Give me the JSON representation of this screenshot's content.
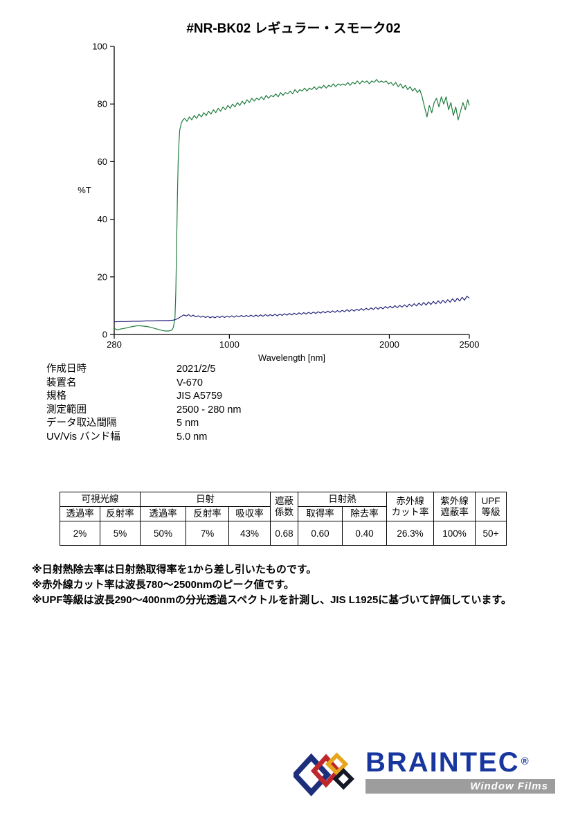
{
  "page": {
    "title": "#NR-BK02  レギュラー・スモーク02"
  },
  "chart_data": {
    "type": "line",
    "title": "",
    "xlabel": "Wavelength [nm]",
    "ylabel": "%T",
    "xlim": [
      280,
      2500
    ],
    "ylim": [
      0,
      100
    ],
    "x_ticks": [
      280,
      1000,
      2000,
      2500
    ],
    "y_ticks": [
      0,
      20,
      40,
      60,
      80,
      100
    ],
    "grid": false,
    "legend": "none",
    "series": [
      {
        "name": "transmittance-spectrum",
        "color": "#1e7d3e",
        "points": [
          [
            280,
            2.1
          ],
          [
            300,
            1.6
          ],
          [
            320,
            1.9
          ],
          [
            340,
            2.1
          ],
          [
            360,
            2.3
          ],
          [
            380,
            2.6
          ],
          [
            400,
            2.8
          ],
          [
            420,
            3.0
          ],
          [
            440,
            3.0
          ],
          [
            460,
            2.9
          ],
          [
            480,
            2.8
          ],
          [
            500,
            2.6
          ],
          [
            520,
            2.3
          ],
          [
            540,
            2.0
          ],
          [
            560,
            1.7
          ],
          [
            580,
            1.4
          ],
          [
            600,
            1.2
          ],
          [
            620,
            1.2
          ],
          [
            640,
            1.5
          ],
          [
            650,
            2.5
          ],
          [
            660,
            6
          ],
          [
            665,
            15
          ],
          [
            670,
            30
          ],
          [
            675,
            48
          ],
          [
            680,
            60
          ],
          [
            685,
            67
          ],
          [
            690,
            71
          ],
          [
            700,
            73.5
          ],
          [
            710,
            74.5
          ],
          [
            720,
            75
          ],
          [
            735,
            74
          ],
          [
            750,
            75.5
          ],
          [
            765,
            74.5
          ],
          [
            780,
            76
          ],
          [
            795,
            75
          ],
          [
            810,
            76.5
          ],
          [
            825,
            75.5
          ],
          [
            840,
            77
          ],
          [
            855,
            76
          ],
          [
            870,
            77.5
          ],
          [
            885,
            76.5
          ],
          [
            900,
            78
          ],
          [
            915,
            77
          ],
          [
            930,
            78.5
          ],
          [
            945,
            77.5
          ],
          [
            960,
            79
          ],
          [
            975,
            78
          ],
          [
            990,
            79.5
          ],
          [
            1005,
            78.5
          ],
          [
            1020,
            80
          ],
          [
            1035,
            79
          ],
          [
            1050,
            80.5
          ],
          [
            1065,
            79.5
          ],
          [
            1080,
            81
          ],
          [
            1095,
            80
          ],
          [
            1110,
            81.5
          ],
          [
            1125,
            80.5
          ],
          [
            1140,
            82
          ],
          [
            1155,
            81
          ],
          [
            1170,
            82
          ],
          [
            1185,
            81.5
          ],
          [
            1200,
            82.5
          ],
          [
            1215,
            81.5
          ],
          [
            1230,
            83
          ],
          [
            1245,
            82
          ],
          [
            1260,
            83
          ],
          [
            1275,
            82.5
          ],
          [
            1290,
            83.5
          ],
          [
            1305,
            82.5
          ],
          [
            1320,
            84
          ],
          [
            1335,
            83
          ],
          [
            1350,
            84
          ],
          [
            1365,
            83.5
          ],
          [
            1380,
            84.5
          ],
          [
            1395,
            83.5
          ],
          [
            1410,
            85
          ],
          [
            1425,
            84
          ],
          [
            1440,
            85
          ],
          [
            1455,
            84.5
          ],
          [
            1470,
            85.5
          ],
          [
            1485,
            84.5
          ],
          [
            1500,
            85.5
          ],
          [
            1515,
            85
          ],
          [
            1530,
            86
          ],
          [
            1545,
            85
          ],
          [
            1560,
            86
          ],
          [
            1575,
            85.5
          ],
          [
            1590,
            86.5
          ],
          [
            1605,
            85.5
          ],
          [
            1620,
            86.5
          ],
          [
            1635,
            86
          ],
          [
            1650,
            87
          ],
          [
            1665,
            86
          ],
          [
            1680,
            87
          ],
          [
            1695,
            86.5
          ],
          [
            1710,
            87
          ],
          [
            1725,
            86.5
          ],
          [
            1740,
            87.5
          ],
          [
            1755,
            86.5
          ],
          [
            1770,
            87.5
          ],
          [
            1785,
            87
          ],
          [
            1800,
            88
          ],
          [
            1815,
            87
          ],
          [
            1830,
            88
          ],
          [
            1845,
            87.5
          ],
          [
            1860,
            88
          ],
          [
            1875,
            87
          ],
          [
            1890,
            88
          ],
          [
            1905,
            87.5
          ],
          [
            1920,
            88.5
          ],
          [
            1935,
            87.5
          ],
          [
            1950,
            88
          ],
          [
            1965,
            87.5
          ],
          [
            1980,
            88
          ],
          [
            1995,
            87
          ],
          [
            2010,
            87.5
          ],
          [
            2025,
            86.5
          ],
          [
            2040,
            87.5
          ],
          [
            2055,
            86
          ],
          [
            2070,
            87
          ],
          [
            2085,
            85.5
          ],
          [
            2100,
            86.5
          ],
          [
            2115,
            85
          ],
          [
            2130,
            86
          ],
          [
            2145,
            84.5
          ],
          [
            2160,
            85.5
          ],
          [
            2175,
            84
          ],
          [
            2190,
            85
          ],
          [
            2205,
            82.5
          ],
          [
            2220,
            79
          ],
          [
            2235,
            75.5
          ],
          [
            2250,
            79.5
          ],
          [
            2265,
            77
          ],
          [
            2280,
            80.5
          ],
          [
            2295,
            82
          ],
          [
            2310,
            79
          ],
          [
            2325,
            82.5
          ],
          [
            2340,
            80
          ],
          [
            2355,
            82.5
          ],
          [
            2370,
            78
          ],
          [
            2385,
            80.5
          ],
          [
            2400,
            76
          ],
          [
            2415,
            79
          ],
          [
            2430,
            74.5
          ],
          [
            2445,
            77.5
          ],
          [
            2460,
            80.5
          ],
          [
            2475,
            78
          ],
          [
            2490,
            81.5
          ],
          [
            2500,
            79.5
          ]
        ]
      },
      {
        "name": "reflectance-spectrum",
        "color": "#23237a",
        "points": [
          [
            280,
            4.4
          ],
          [
            320,
            4.5
          ],
          [
            360,
            4.5
          ],
          [
            400,
            4.6
          ],
          [
            440,
            4.6
          ],
          [
            480,
            4.7
          ],
          [
            520,
            4.7
          ],
          [
            560,
            4.8
          ],
          [
            600,
            4.8
          ],
          [
            640,
            4.9
          ],
          [
            660,
            5.1
          ],
          [
            680,
            5.6
          ],
          [
            700,
            6.3
          ],
          [
            715,
            6.8
          ],
          [
            730,
            6.4
          ],
          [
            745,
            6.9
          ],
          [
            760,
            6.3
          ],
          [
            775,
            6.7
          ],
          [
            790,
            6.1
          ],
          [
            805,
            6.5
          ],
          [
            820,
            6.0
          ],
          [
            835,
            6.4
          ],
          [
            850,
            5.9
          ],
          [
            865,
            6.3
          ],
          [
            880,
            5.8
          ],
          [
            895,
            6.2
          ],
          [
            910,
            5.8
          ],
          [
            925,
            6.3
          ],
          [
            940,
            5.9
          ],
          [
            955,
            6.4
          ],
          [
            970,
            5.9
          ],
          [
            985,
            6.4
          ],
          [
            1000,
            6.0
          ],
          [
            1015,
            6.5
          ],
          [
            1030,
            6.0
          ],
          [
            1045,
            6.5
          ],
          [
            1060,
            6.1
          ],
          [
            1075,
            6.6
          ],
          [
            1090,
            6.1
          ],
          [
            1105,
            6.6
          ],
          [
            1120,
            6.2
          ],
          [
            1135,
            6.7
          ],
          [
            1150,
            6.2
          ],
          [
            1165,
            6.7
          ],
          [
            1180,
            6.3
          ],
          [
            1195,
            6.8
          ],
          [
            1210,
            6.3
          ],
          [
            1225,
            6.9
          ],
          [
            1240,
            6.4
          ],
          [
            1255,
            6.9
          ],
          [
            1270,
            6.5
          ],
          [
            1285,
            7.0
          ],
          [
            1300,
            6.5
          ],
          [
            1315,
            7.1
          ],
          [
            1330,
            6.6
          ],
          [
            1345,
            7.2
          ],
          [
            1360,
            6.7
          ],
          [
            1375,
            7.3
          ],
          [
            1390,
            6.8
          ],
          [
            1405,
            7.4
          ],
          [
            1420,
            6.9
          ],
          [
            1435,
            7.5
          ],
          [
            1450,
            7.0
          ],
          [
            1465,
            7.6
          ],
          [
            1480,
            7.1
          ],
          [
            1495,
            7.7
          ],
          [
            1510,
            7.2
          ],
          [
            1525,
            7.8
          ],
          [
            1540,
            7.3
          ],
          [
            1555,
            7.9
          ],
          [
            1570,
            7.4
          ],
          [
            1585,
            8.0
          ],
          [
            1600,
            7.5
          ],
          [
            1615,
            8.1
          ],
          [
            1630,
            7.6
          ],
          [
            1645,
            8.2
          ],
          [
            1660,
            7.7
          ],
          [
            1675,
            8.3
          ],
          [
            1690,
            7.8
          ],
          [
            1705,
            8.4
          ],
          [
            1720,
            7.9
          ],
          [
            1735,
            8.6
          ],
          [
            1750,
            8.0
          ],
          [
            1765,
            8.7
          ],
          [
            1780,
            8.1
          ],
          [
            1795,
            8.8
          ],
          [
            1810,
            8.3
          ],
          [
            1825,
            9.0
          ],
          [
            1840,
            8.4
          ],
          [
            1855,
            9.1
          ],
          [
            1870,
            8.5
          ],
          [
            1885,
            9.2
          ],
          [
            1900,
            8.7
          ],
          [
            1915,
            9.4
          ],
          [
            1930,
            8.8
          ],
          [
            1945,
            9.5
          ],
          [
            1960,
            8.9
          ],
          [
            1975,
            9.7
          ],
          [
            1990,
            9.1
          ],
          [
            2005,
            9.8
          ],
          [
            2020,
            9.2
          ],
          [
            2035,
            10.0
          ],
          [
            2050,
            9.3
          ],
          [
            2065,
            10.1
          ],
          [
            2080,
            9.5
          ],
          [
            2095,
            10.3
          ],
          [
            2110,
            9.6
          ],
          [
            2125,
            10.5
          ],
          [
            2140,
            9.8
          ],
          [
            2155,
            10.7
          ],
          [
            2170,
            9.9
          ],
          [
            2185,
            10.9
          ],
          [
            2200,
            10.1
          ],
          [
            2215,
            11.1
          ],
          [
            2230,
            10.2
          ],
          [
            2245,
            11.3
          ],
          [
            2260,
            10.4
          ],
          [
            2275,
            11.5
          ],
          [
            2290,
            10.6
          ],
          [
            2305,
            11.7
          ],
          [
            2320,
            10.8
          ],
          [
            2335,
            11.9
          ],
          [
            2350,
            11.0
          ],
          [
            2365,
            12.1
          ],
          [
            2380,
            11.2
          ],
          [
            2395,
            12.4
          ],
          [
            2410,
            11.4
          ],
          [
            2425,
            12.6
          ],
          [
            2440,
            11.6
          ],
          [
            2455,
            12.9
          ],
          [
            2470,
            11.9
          ],
          [
            2485,
            13.3
          ],
          [
            2500,
            12.6
          ]
        ]
      }
    ]
  },
  "meta": {
    "rows": [
      {
        "label": "作成日時",
        "value": "2021/2/5"
      },
      {
        "label": "装置名",
        "value": "V-670"
      },
      {
        "label": "規格",
        "value": "JIS A5759"
      },
      {
        "label": "測定範囲",
        "value": "2500 - 280 nm"
      },
      {
        "label": "データ取込間隔",
        "value": "5 nm"
      },
      {
        "label": "UV/Vis バンド幅",
        "value": "5.0 nm"
      }
    ]
  },
  "results_table": {
    "headers": {
      "visible": "可視光線",
      "solar": "日射",
      "shading": [
        "遮蔽",
        "係数"
      ],
      "heat": "日射熱",
      "ir": [
        "赤外線",
        "カット率"
      ],
      "uv": [
        "紫外線",
        "遮蔽率"
      ],
      "upf": [
        "UPF",
        "等級"
      ]
    },
    "subs": [
      "透過率",
      "反射率",
      "透過率",
      "反射率",
      "吸収率",
      "取得率",
      "除去率"
    ],
    "values": [
      "2%",
      "5%",
      "50%",
      "7%",
      "43%",
      "0.68",
      "0.60",
      "0.40",
      "26.3%",
      "100%",
      "50+"
    ]
  },
  "footnotes": [
    "※日射熱除去率は日射熱取得率を1から差し引いたものです。",
    "※赤外線カット率は波長780〜2500nmのピーク値です。",
    "※UPF等級は波長290〜400nmの分光透過スペクトルを計測し、JIS L1925に基づいて評価しています。"
  ],
  "logo": {
    "brand": "BRAINTEC",
    "registered": "®",
    "tagline": "Window Films",
    "brand_color": "#17379e",
    "bar_color": "#9d9d9d",
    "diamond_colors": [
      "#1d2e7b",
      "#c0272d",
      "#e8a61f",
      "#141827"
    ]
  }
}
